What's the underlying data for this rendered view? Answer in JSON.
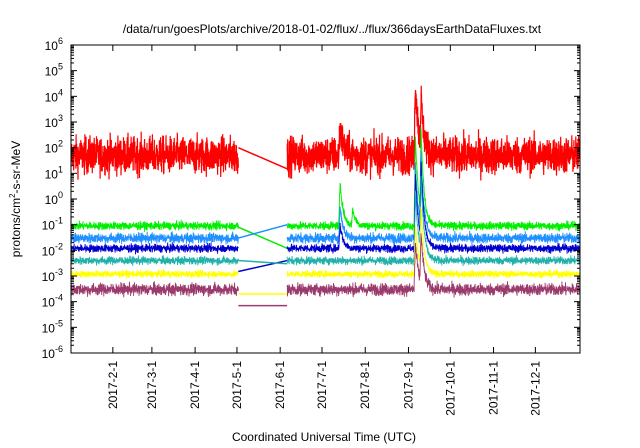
{
  "chart_data": {
    "type": "line",
    "title": "/data/run/goesPlots/archive/2018-01-02/flux/../flux/366daysEarthDataFluxes.txt",
    "xlabel": "Coordinated Universal Time (UTC)",
    "ylabel": {
      "pre": "protons/cm",
      "sup": "2",
      "post": "-s-sr-MeV"
    },
    "yscale": "log",
    "ylim": [
      1e-06,
      1000000.0
    ],
    "xlim": [
      "2017-01-02",
      "2018-01-02"
    ],
    "grid": false,
    "legend": "none",
    "y_ticks": [
      {
        "value": 1e-06,
        "base": "10",
        "exp": "-6"
      },
      {
        "value": 1e-05,
        "base": "10",
        "exp": "-5"
      },
      {
        "value": 0.0001,
        "base": "10",
        "exp": "-4"
      },
      {
        "value": 0.001,
        "base": "10",
        "exp": "-3"
      },
      {
        "value": 0.01,
        "base": "10",
        "exp": "-2"
      },
      {
        "value": 0.1,
        "base": "10",
        "exp": "-1"
      },
      {
        "value": 1,
        "base": "10",
        "exp": "0"
      },
      {
        "value": 10,
        "base": "10",
        "exp": "1"
      },
      {
        "value": 100,
        "base": "10",
        "exp": "2"
      },
      {
        "value": 1000,
        "base": "10",
        "exp": "3"
      },
      {
        "value": 10000,
        "base": "10",
        "exp": "4"
      },
      {
        "value": 100000,
        "base": "10",
        "exp": "5"
      },
      {
        "value": 1000000,
        "base": "10",
        "exp": "6"
      }
    ],
    "x_ticks": [
      {
        "label": "2017-2-1",
        "date": "2017-02-01"
      },
      {
        "label": "2017-3-1",
        "date": "2017-03-01"
      },
      {
        "label": "2017-4-1",
        "date": "2017-04-01"
      },
      {
        "label": "2017-5-1",
        "date": "2017-05-01"
      },
      {
        "label": "2017-6-1",
        "date": "2017-06-01"
      },
      {
        "label": "2017-7-1",
        "date": "2017-07-01"
      },
      {
        "label": "2017-8-1",
        "date": "2017-08-01"
      },
      {
        "label": "2017-9-1",
        "date": "2017-09-01"
      },
      {
        "label": "2017-10-1",
        "date": "2017-10-01"
      },
      {
        "label": "2017-11-1",
        "date": "2017-11-01"
      },
      {
        "label": "2017-12-1",
        "date": "2017-12-01"
      }
    ],
    "data_gap": [
      "2017-05-02",
      "2017-06-06"
    ],
    "series": [
      {
        "color": "#ff0000",
        "base": 50,
        "noise_decades": 0.55,
        "before_gap": 100,
        "after_gap": 15,
        "events": [
          {
            "date": "2017-07-14",
            "peak": 700
          },
          {
            "date": "2017-09-06",
            "peak": 40000
          },
          {
            "date": "2017-09-10",
            "peak": 10000
          }
        ]
      },
      {
        "color": "#00ee00",
        "base": 0.09,
        "noise_decades": 0.12,
        "before_gap": 0.08,
        "after_gap": 0.012,
        "events": [
          {
            "date": "2017-07-14",
            "peak": 5
          },
          {
            "date": "2017-07-23",
            "peak": 0.4
          },
          {
            "date": "2017-09-06",
            "peak": 300
          },
          {
            "date": "2017-09-10",
            "peak": 600
          }
        ]
      },
      {
        "color": "#1e90ff",
        "base": 0.03,
        "noise_decades": 0.15,
        "before_gap": 0.03,
        "after_gap": 0.1,
        "events": [
          {
            "date": "2017-07-14",
            "peak": 0.5
          },
          {
            "date": "2017-09-06",
            "peak": 30
          },
          {
            "date": "2017-09-10",
            "peak": 80
          }
        ]
      },
      {
        "color": "#0000cd",
        "base": 0.012,
        "noise_decades": 0.12,
        "before_gap": 0.0015,
        "after_gap": 0.004,
        "events": [
          {
            "date": "2017-07-14",
            "peak": 0.1
          },
          {
            "date": "2017-09-06",
            "peak": 10
          },
          {
            "date": "2017-09-10",
            "peak": 30
          }
        ]
      },
      {
        "color": "#20b2aa",
        "base": 0.004,
        "noise_decades": 0.12,
        "before_gap": 0.004,
        "after_gap": 0.003,
        "events": [
          {
            "date": "2017-09-06",
            "peak": 2
          },
          {
            "date": "2017-09-10",
            "peak": 8
          }
        ]
      },
      {
        "color": "#ffff00",
        "base": 0.0012,
        "noise_decades": 0.1,
        "before_gap": 0.0002,
        "after_gap": 0.0002,
        "events": [
          {
            "date": "2017-09-06",
            "peak": 0.1
          },
          {
            "date": "2017-09-10",
            "peak": 0.5
          }
        ]
      },
      {
        "color": "#9b3b6b",
        "base": 0.0003,
        "noise_decades": 0.18,
        "before_gap": 7e-05,
        "after_gap": 7e-05,
        "events": [
          {
            "date": "2017-09-06",
            "peak": 0.02
          },
          {
            "date": "2017-09-10",
            "peak": 0.05
          }
        ]
      }
    ]
  }
}
